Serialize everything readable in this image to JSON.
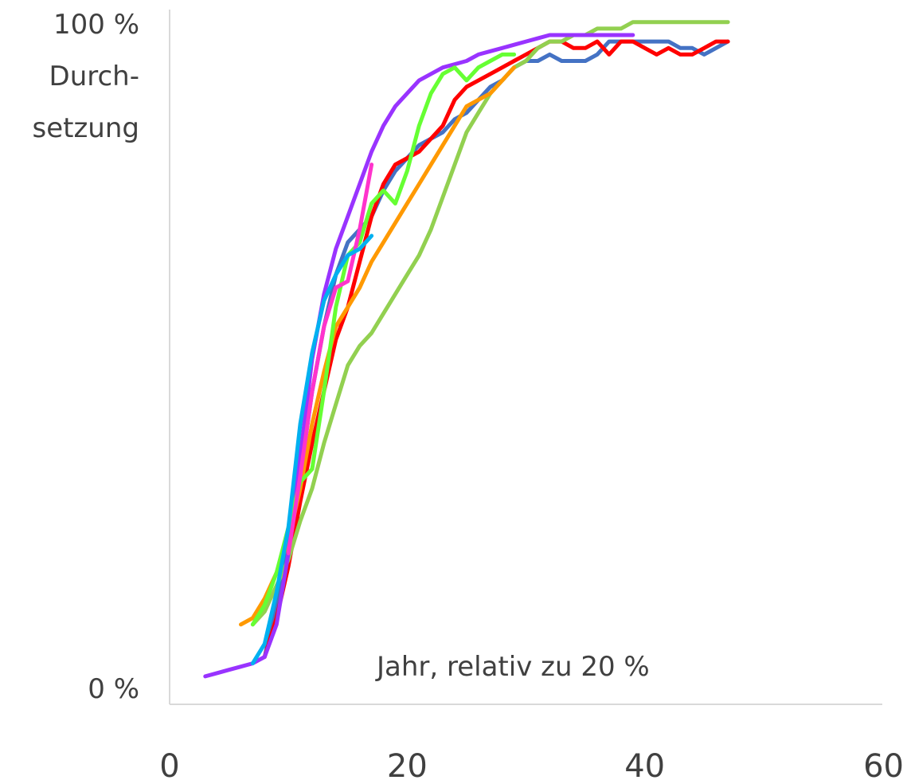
{
  "chart_data": {
    "type": "line",
    "ylabel_lines": [
      "100 %",
      "Durch-",
      "setzung"
    ],
    "y_zero_label": "0 %",
    "annotation": "Jahr, relativ zu 20 %",
    "xlim": [
      0,
      60
    ],
    "ylim": [
      0,
      100
    ],
    "x_ticks": [
      "0",
      "20",
      "40",
      "60"
    ],
    "grid": false,
    "series": [
      {
        "color": "#4472c4",
        "points": [
          [
            8,
            4
          ],
          [
            9,
            12
          ],
          [
            10,
            22
          ],
          [
            11,
            32
          ],
          [
            12,
            45
          ],
          [
            13,
            55
          ],
          [
            14,
            63
          ],
          [
            15,
            68
          ],
          [
            16,
            70
          ],
          [
            17,
            72
          ],
          [
            18,
            76
          ],
          [
            19,
            79
          ],
          [
            20,
            81
          ],
          [
            21,
            83
          ],
          [
            22,
            84
          ],
          [
            23,
            85
          ],
          [
            24,
            87
          ],
          [
            25,
            88
          ],
          [
            26,
            90
          ],
          [
            27,
            92
          ],
          [
            28,
            93
          ],
          [
            29,
            95
          ],
          [
            30,
            96
          ],
          [
            31,
            96
          ],
          [
            32,
            97
          ],
          [
            33,
            96
          ],
          [
            34,
            96
          ],
          [
            35,
            96
          ],
          [
            36,
            97
          ],
          [
            37,
            99
          ],
          [
            38,
            99
          ],
          [
            39,
            99
          ],
          [
            40,
            99
          ],
          [
            41,
            99
          ],
          [
            42,
            99
          ],
          [
            43,
            98
          ],
          [
            44,
            98
          ],
          [
            45,
            97
          ],
          [
            46,
            98
          ],
          [
            47,
            99
          ]
        ]
      },
      {
        "color": "#ff0000",
        "points": [
          [
            8,
            4
          ],
          [
            9,
            10
          ],
          [
            10,
            18
          ],
          [
            11,
            28
          ],
          [
            12,
            37
          ],
          [
            13,
            45
          ],
          [
            14,
            53
          ],
          [
            15,
            58
          ],
          [
            16,
            65
          ],
          [
            17,
            72
          ],
          [
            18,
            77
          ],
          [
            19,
            80
          ],
          [
            20,
            81
          ],
          [
            21,
            82
          ],
          [
            22,
            84
          ],
          [
            23,
            86
          ],
          [
            24,
            90
          ],
          [
            25,
            92
          ],
          [
            26,
            93
          ],
          [
            27,
            94
          ],
          [
            28,
            95
          ],
          [
            29,
            96
          ],
          [
            30,
            97
          ],
          [
            31,
            98
          ],
          [
            32,
            99
          ],
          [
            33,
            99
          ],
          [
            34,
            98
          ],
          [
            35,
            98
          ],
          [
            36,
            99
          ],
          [
            37,
            97
          ],
          [
            38,
            99
          ],
          [
            39,
            99
          ],
          [
            40,
            98
          ],
          [
            41,
            97
          ],
          [
            42,
            98
          ],
          [
            43,
            97
          ],
          [
            44,
            97
          ],
          [
            45,
            98
          ],
          [
            46,
            99
          ],
          [
            47,
            99
          ]
        ]
      },
      {
        "color": "#92d050",
        "points": [
          [
            7,
            9
          ],
          [
            8,
            11
          ],
          [
            9,
            15
          ],
          [
            10,
            19
          ],
          [
            11,
            25
          ],
          [
            12,
            30
          ],
          [
            13,
            37
          ],
          [
            14,
            43
          ],
          [
            15,
            49
          ],
          [
            16,
            52
          ],
          [
            17,
            54
          ],
          [
            18,
            57
          ],
          [
            19,
            60
          ],
          [
            20,
            63
          ],
          [
            21,
            66
          ],
          [
            22,
            70
          ],
          [
            23,
            75
          ],
          [
            24,
            80
          ],
          [
            25,
            85
          ],
          [
            26,
            88
          ],
          [
            27,
            91
          ],
          [
            28,
            93
          ],
          [
            29,
            95
          ],
          [
            30,
            96
          ],
          [
            31,
            98
          ],
          [
            32,
            99
          ],
          [
            33,
            99
          ],
          [
            34,
            100
          ],
          [
            35,
            100
          ],
          [
            36,
            101
          ],
          [
            37,
            101
          ],
          [
            38,
            101
          ],
          [
            39,
            102
          ],
          [
            40,
            102
          ],
          [
            41,
            102
          ],
          [
            42,
            102
          ],
          [
            43,
            102
          ],
          [
            44,
            102
          ],
          [
            45,
            102
          ],
          [
            46,
            102
          ],
          [
            47,
            102
          ]
        ]
      },
      {
        "color": "#ff9900",
        "points": [
          [
            6,
            9
          ],
          [
            7,
            10
          ],
          [
            8,
            13
          ],
          [
            9,
            17
          ],
          [
            10,
            22
          ],
          [
            11,
            30
          ],
          [
            12,
            40
          ],
          [
            13,
            48
          ],
          [
            14,
            55
          ],
          [
            15,
            58
          ],
          [
            16,
            61
          ],
          [
            17,
            65
          ],
          [
            18,
            68
          ],
          [
            19,
            71
          ],
          [
            20,
            74
          ],
          [
            21,
            77
          ],
          [
            22,
            80
          ],
          [
            23,
            83
          ],
          [
            24,
            86
          ],
          [
            25,
            89
          ],
          [
            26,
            90
          ],
          [
            27,
            91
          ],
          [
            28,
            93
          ],
          [
            29,
            95
          ]
        ]
      },
      {
        "color": "#9933ff",
        "points": [
          [
            3,
            1
          ],
          [
            4,
            1.5
          ],
          [
            5,
            2
          ],
          [
            6,
            2.5
          ],
          [
            7,
            3
          ],
          [
            8,
            4
          ],
          [
            9,
            9
          ],
          [
            10,
            20
          ],
          [
            11,
            35
          ],
          [
            12,
            50
          ],
          [
            13,
            60
          ],
          [
            14,
            67
          ],
          [
            15,
            72
          ],
          [
            16,
            77
          ],
          [
            17,
            82
          ],
          [
            18,
            86
          ],
          [
            19,
            89
          ],
          [
            20,
            91
          ],
          [
            21,
            93
          ],
          [
            22,
            94
          ],
          [
            23,
            95
          ],
          [
            24,
            95.5
          ],
          [
            25,
            96
          ],
          [
            26,
            97
          ],
          [
            27,
            97.5
          ],
          [
            28,
            98
          ],
          [
            29,
            98.5
          ],
          [
            30,
            99
          ],
          [
            31,
            99.5
          ],
          [
            32,
            100
          ],
          [
            33,
            100
          ],
          [
            34,
            100
          ],
          [
            35,
            100
          ],
          [
            36,
            100
          ],
          [
            37,
            100
          ],
          [
            38,
            100
          ],
          [
            39,
            100
          ]
        ]
      },
      {
        "color": "#66ff33",
        "points": [
          [
            7,
            9
          ],
          [
            8,
            12
          ],
          [
            9,
            17
          ],
          [
            10,
            24
          ],
          [
            11,
            31
          ],
          [
            12,
            33
          ],
          [
            13,
            45
          ],
          [
            14,
            58
          ],
          [
            15,
            66
          ],
          [
            16,
            68
          ],
          [
            17,
            74
          ],
          [
            18,
            76
          ],
          [
            19,
            74
          ],
          [
            20,
            79
          ],
          [
            21,
            86
          ],
          [
            22,
            91
          ],
          [
            23,
            94
          ],
          [
            24,
            95
          ],
          [
            25,
            93
          ],
          [
            26,
            95
          ],
          [
            27,
            96
          ],
          [
            28,
            97
          ],
          [
            29,
            97
          ]
        ]
      },
      {
        "color": "#ff33cc",
        "points": [
          [
            10,
            20
          ],
          [
            11,
            32
          ],
          [
            12,
            45
          ],
          [
            13,
            55
          ],
          [
            14,
            61
          ],
          [
            15,
            62
          ],
          [
            16,
            70
          ],
          [
            17,
            80
          ]
        ]
      },
      {
        "color": "#00b0f0",
        "points": [
          [
            7,
            3
          ],
          [
            8,
            6
          ],
          [
            9,
            14
          ],
          [
            10,
            24
          ],
          [
            11,
            40
          ],
          [
            12,
            51
          ],
          [
            13,
            59
          ],
          [
            14,
            63
          ],
          [
            15,
            66
          ],
          [
            16,
            67
          ],
          [
            17,
            69
          ]
        ]
      }
    ]
  }
}
